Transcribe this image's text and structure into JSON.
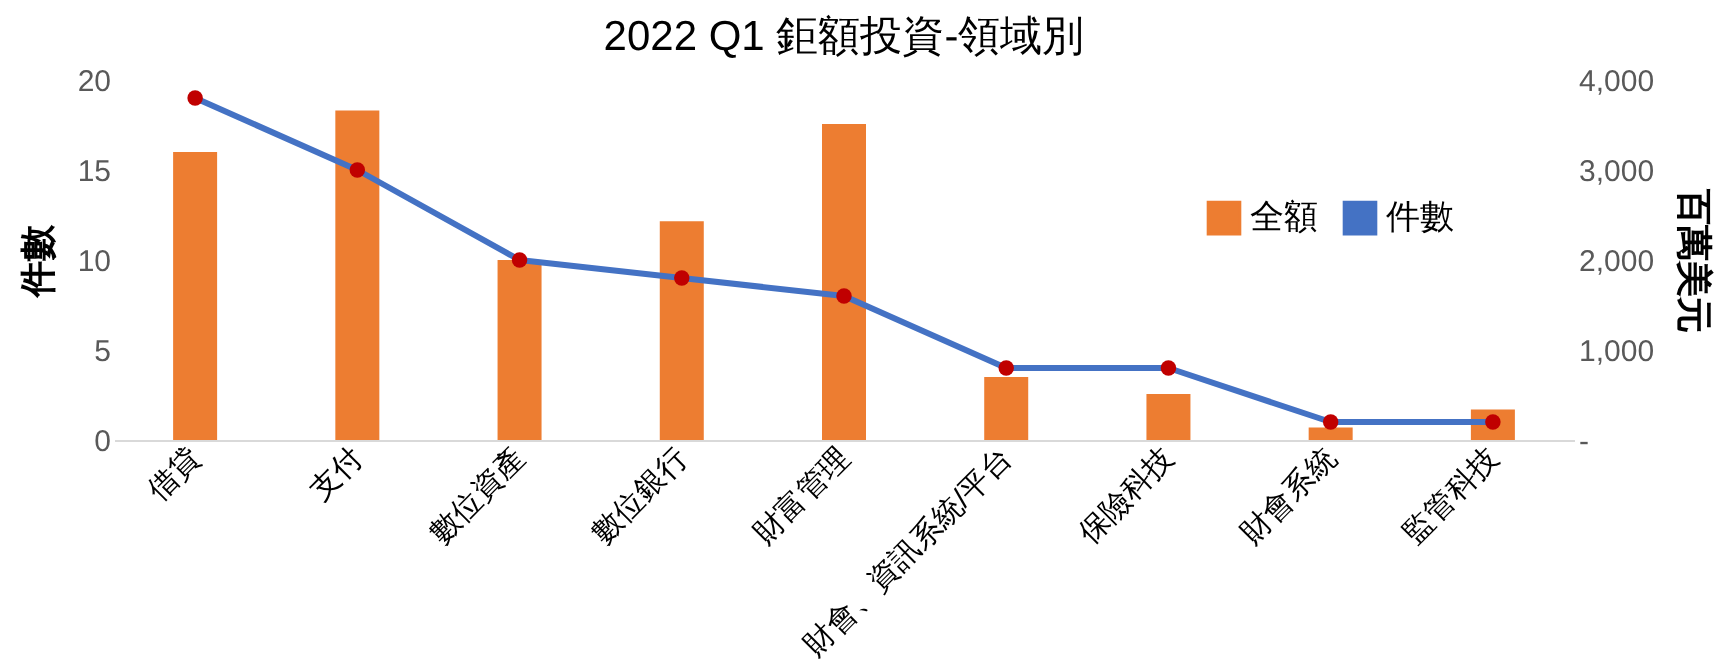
{
  "chart_data": {
    "type": "bar",
    "title": "2022 Q1 鉅額投資-領域別",
    "categories": [
      "借貸",
      "支付",
      "數位資產",
      "數位銀行",
      "財富管理",
      "財會、資訊系統/平台",
      "保險科技",
      "財會系統",
      "監管科技"
    ],
    "series": [
      {
        "name": "全額",
        "axis": "y2",
        "color": "#ed7d31",
        "values": [
          3200,
          3660,
          2000,
          2430,
          3510,
          700,
          510,
          140,
          340
        ]
      },
      {
        "name": "件數",
        "type": "line",
        "axis": "y",
        "color": "#4472c4",
        "marker": "circle",
        "values": [
          19,
          15,
          10,
          9,
          8,
          4,
          4,
          1,
          1
        ]
      }
    ],
    "ylabel": "件數",
    "y2label": "百萬美元",
    "ylim": [
      0,
      20
    ],
    "yticks": [
      0,
      5,
      10,
      15,
      20
    ],
    "y2lim": [
      0,
      4000
    ],
    "y2ticks": [
      {
        "value": 0,
        "label": "-"
      },
      {
        "value": 1000,
        "label": "1,000"
      },
      {
        "value": 2000,
        "label": "2,000"
      },
      {
        "value": 3000,
        "label": "3,000"
      },
      {
        "value": 4000,
        "label": "4,000"
      }
    ],
    "grid": false,
    "legend": "top right"
  }
}
